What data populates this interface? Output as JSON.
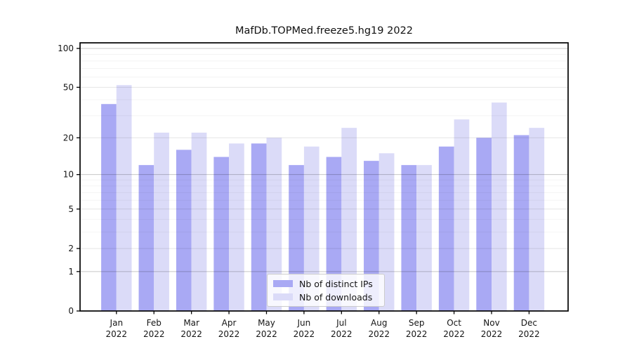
{
  "chart_data": {
    "type": "bar",
    "title": "MafDb.TOPMed.freeze5.hg19 2022",
    "categories": [
      "Jan 2022",
      "Feb 2022",
      "Mar 2022",
      "Apr 2022",
      "May 2022",
      "Jun 2022",
      "Jul 2022",
      "Aug 2022",
      "Sep 2022",
      "Oct 2022",
      "Nov 2022",
      "Dec 2022"
    ],
    "series": [
      {
        "name": "Nb of distinct IPs",
        "color": "#a9a9f4",
        "values": [
          37,
          12,
          16,
          14,
          18,
          12,
          14,
          13,
          12,
          17,
          20,
          21
        ]
      },
      {
        "name": "Nb of downloads",
        "color": "#dbdbf8",
        "values": [
          52,
          22,
          22,
          18,
          20,
          17,
          24,
          15,
          12,
          28,
          38,
          24
        ]
      }
    ],
    "xlabel": "",
    "ylabel": "",
    "yscale": "log1p",
    "ylim": [
      0,
      110
    ],
    "yticks": [
      0,
      1,
      2,
      5,
      10,
      20,
      50,
      100
    ],
    "ytick_labels": [
      "0",
      "1",
      "2",
      "5",
      "10",
      "20",
      "50",
      "100"
    ],
    "grid": true,
    "legend_position": "lower center"
  },
  "colors": {
    "grid_decade": "rgba(0,0,0,0.22)",
    "grid_mid": "rgba(0,0,0,0.10)",
    "grid_minor": "rgba(0,0,0,0.045)",
    "spine": "#000000",
    "text": "#151515"
  }
}
